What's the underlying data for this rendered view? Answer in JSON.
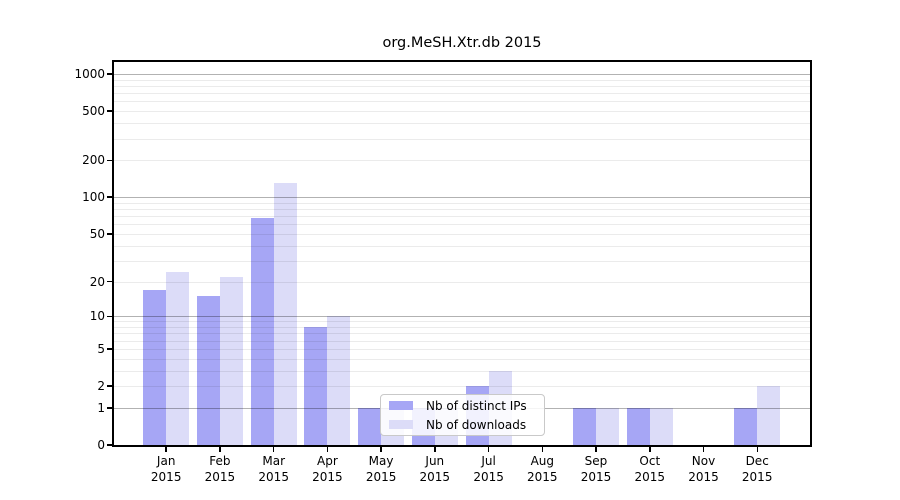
{
  "chart_data": {
    "type": "bar",
    "title": "org.MeSH.Xtr.db 2015",
    "categories": [
      "Jan",
      "Feb",
      "Mar",
      "Apr",
      "May",
      "Jun",
      "Jul",
      "Aug",
      "Sep",
      "Oct",
      "Nov",
      "Dec"
    ],
    "year_label": "2015",
    "series": [
      {
        "name": "Nb of distinct IPs",
        "color": "#a6a6f5",
        "values": [
          17,
          15,
          67,
          8,
          1,
          1,
          2,
          0,
          1,
          1,
          0,
          1
        ]
      },
      {
        "name": "Nb of downloads",
        "color": "#dcdcf8",
        "values": [
          24,
          22,
          130,
          10,
          1,
          1,
          3,
          0,
          1,
          1,
          0,
          2
        ]
      }
    ],
    "y_ticks": [
      0,
      1,
      2,
      5,
      10,
      20,
      50,
      100,
      200,
      500,
      1000
    ],
    "scale": "log10(1+y), zero pinned at baseline",
    "ylim": [
      0,
      1250
    ],
    "grid": "major decades dark, minor 2-9 per decade faint, drawn over bars",
    "legend_position": "inside plot, lower middle",
    "xlabel": "",
    "ylabel": ""
  },
  "colors": {
    "bar_distinct_ips": "#a6a6f5",
    "bar_downloads": "#dcdcf8",
    "grid_major": "rgba(0,0,0,0.30)",
    "grid_minor": "rgba(0,0,0,0.08)",
    "spine": "#000000",
    "legend_border": "#c9c9c9",
    "legend_background": "rgba(255,255,255,0.85)"
  }
}
